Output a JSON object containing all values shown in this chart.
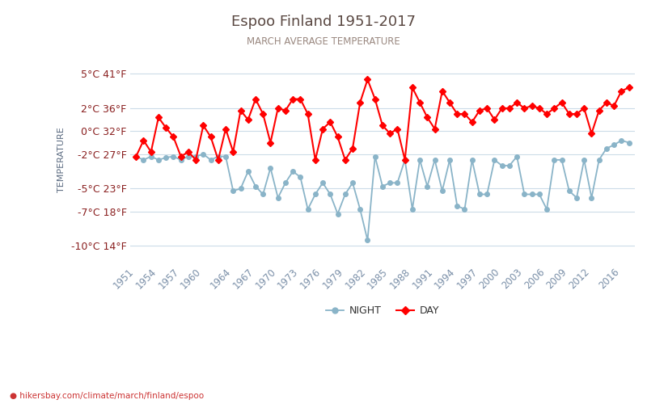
{
  "title": "Espoo Finland 1951-2017",
  "subtitle": "MARCH AVERAGE TEMPERATURE",
  "ylabel": "TEMPERATURE",
  "footer": "hikersbay.com/climate/march/finland/espoo",
  "title_color": "#5a4842",
  "subtitle_color": "#9a8880",
  "ylabel_color": "#5a6a80",
  "tick_label_color": "#8a2020",
  "xtick_color": "#7a8fa8",
  "background_color": "#ffffff",
  "grid_color": "#ccdce8",
  "night_color": "#8ab4c8",
  "day_color": "#ff0000",
  "years": [
    1951,
    1952,
    1953,
    1954,
    1955,
    1956,
    1957,
    1958,
    1959,
    1960,
    1961,
    1962,
    1963,
    1964,
    1965,
    1966,
    1967,
    1968,
    1969,
    1970,
    1971,
    1972,
    1973,
    1974,
    1975,
    1976,
    1977,
    1978,
    1979,
    1980,
    1981,
    1982,
    1983,
    1984,
    1985,
    1986,
    1987,
    1988,
    1989,
    1990,
    1991,
    1992,
    1993,
    1994,
    1995,
    1996,
    1997,
    1998,
    1999,
    2000,
    2001,
    2002,
    2003,
    2004,
    2005,
    2006,
    2007,
    2008,
    2009,
    2010,
    2011,
    2012,
    2013,
    2014,
    2015,
    2016,
    2017
  ],
  "day": [
    -2.2,
    -0.8,
    -1.8,
    1.2,
    0.3,
    -0.5,
    -2.2,
    -1.8,
    -2.5,
    0.5,
    -0.5,
    -2.5,
    0.2,
    -1.8,
    1.8,
    1.0,
    2.8,
    1.5,
    -1.0,
    2.0,
    1.8,
    2.8,
    2.8,
    1.5,
    -2.5,
    0.2,
    0.8,
    -0.5,
    -2.5,
    -1.5,
    2.5,
    4.5,
    2.8,
    0.5,
    -0.2,
    0.2,
    -2.5,
    3.8,
    2.5,
    1.2,
    0.2,
    3.5,
    2.5,
    1.5,
    1.5,
    0.8,
    1.8,
    2.0,
    1.0,
    2.0,
    2.0,
    2.5,
    2.0,
    2.2,
    2.0,
    1.5,
    2.0,
    2.5,
    1.5,
    1.5,
    2.0,
    -0.2,
    1.8,
    2.5,
    2.2,
    3.5,
    3.8
  ],
  "night": [
    -2.2,
    -2.5,
    -2.2,
    -2.5,
    -2.3,
    -2.2,
    -2.5,
    -2.2,
    -2.2,
    -2.0,
    -2.5,
    -2.2,
    -2.2,
    -5.2,
    -5.0,
    -3.5,
    -4.8,
    -5.5,
    -3.2,
    -5.8,
    -4.5,
    -3.5,
    -4.0,
    -6.8,
    -5.5,
    -4.5,
    -5.5,
    -7.2,
    -5.5,
    -4.5,
    -6.8,
    -9.5,
    -2.2,
    -4.8,
    -4.5,
    -4.5,
    -2.5,
    -6.8,
    -2.5,
    -4.8,
    -2.5,
    -5.2,
    -2.5,
    -6.5,
    -6.8,
    -2.5,
    -5.5,
    -5.5,
    -2.5,
    -3.0,
    -3.0,
    -2.2,
    -5.5,
    -5.5,
    -5.5,
    -6.8,
    -2.5,
    -2.5,
    -5.2,
    -5.8,
    -2.5,
    -5.8,
    -2.5,
    -1.5,
    -1.2,
    -0.8,
    -1.0
  ],
  "yticks": [
    5,
    2,
    0,
    -2,
    -5,
    -7,
    -10
  ],
  "ytick_labels": [
    "5°C 41°F",
    "2°C 36°F",
    "0°C 32°F",
    "-2°C 27°F",
    "-5°C 23°F",
    "-7°C 18°F",
    "-10°C 14°F"
  ],
  "xtick_years": [
    1951,
    1954,
    1957,
    1960,
    1964,
    1967,
    1970,
    1973,
    1976,
    1979,
    1982,
    1985,
    1988,
    1991,
    1994,
    1997,
    2000,
    2003,
    2006,
    2009,
    2012,
    2016
  ],
  "ylim": [
    -11.5,
    6.5
  ],
  "xlim": [
    1950.2,
    2017.8
  ]
}
